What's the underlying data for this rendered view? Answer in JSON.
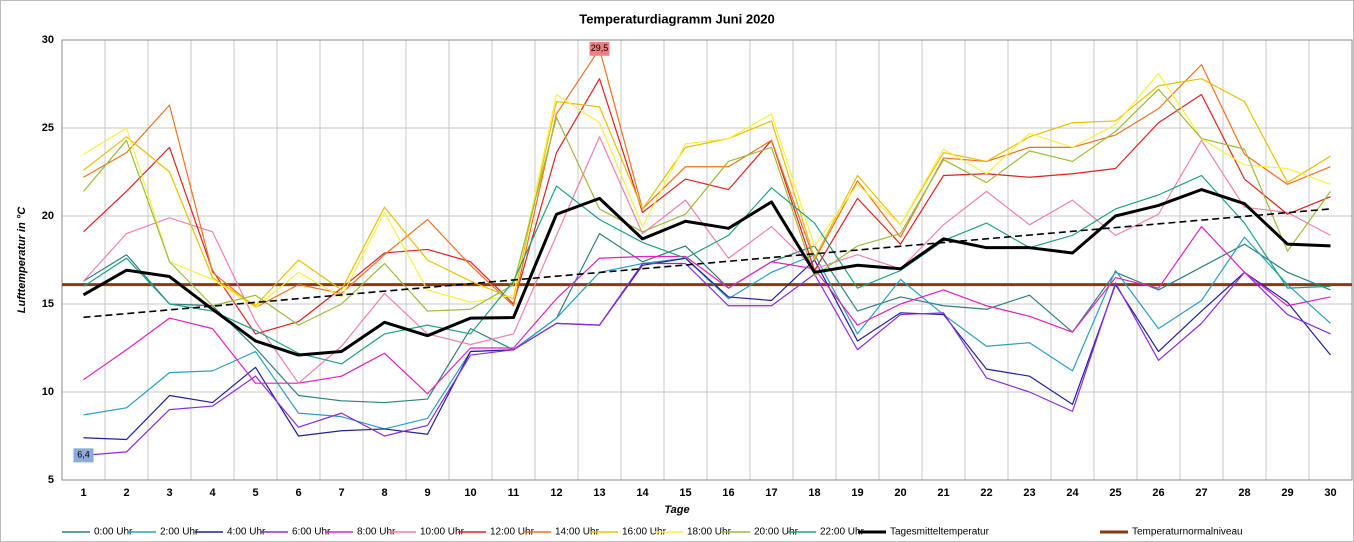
{
  "chart_data": {
    "type": "line",
    "title": "Temperaturdiagramm Juni 2020",
    "xlabel": "Tage",
    "ylabel": "Lufttemperatur in °C",
    "categories": [
      "1",
      "2",
      "3",
      "4",
      "5",
      "6",
      "7",
      "8",
      "9",
      "10",
      "11",
      "12",
      "13",
      "14",
      "15",
      "16",
      "17",
      "18",
      "19",
      "20",
      "21",
      "22",
      "23",
      "24",
      "25",
      "26",
      "27",
      "28",
      "29",
      "30"
    ],
    "ylim": [
      5,
      30
    ],
    "yticks": [
      5,
      10,
      15,
      20,
      25,
      30
    ],
    "grid": true,
    "series": [
      {
        "name": "0:00 Uhr",
        "color": "#2e7f7f",
        "values": [
          16.3,
          17.8,
          15,
          14.9,
          12.5,
          9.8,
          9.5,
          9.4,
          9.6,
          13.6,
          12.4,
          14.2,
          19,
          17.4,
          18.3,
          15.9,
          17.4,
          18.3,
          14.6,
          15.4,
          14.9,
          14.7,
          15.5,
          13.4,
          16.8,
          15.8,
          17.1,
          18.4,
          16.8,
          15.8
        ]
      },
      {
        "name": "2:00 Uhr",
        "color": "#2a9fc0",
        "values": [
          8.7,
          9.1,
          11.1,
          11.2,
          12.3,
          8.8,
          8.6,
          7.9,
          8.5,
          12.3,
          12.4,
          14.2,
          16.8,
          17.3,
          17.6,
          15.3,
          16.8,
          17.8,
          13.3,
          16.4,
          14.4,
          12.6,
          12.8,
          11.2,
          16.9,
          13.6,
          15.2,
          18.8,
          16.1,
          13.9
        ]
      },
      {
        "name": "4:00 Uhr",
        "color": "#1f1f9a",
        "values": [
          7.4,
          7.3,
          9.8,
          9.4,
          11.4,
          7.5,
          7.8,
          7.9,
          7.6,
          12.3,
          12.4,
          13.9,
          13.8,
          17.2,
          17.6,
          15.4,
          15.2,
          17.5,
          12.9,
          14.5,
          14.4,
          11.3,
          10.9,
          9.3,
          16.1,
          12.3,
          14.6,
          16.8,
          15.1,
          12.1
        ]
      },
      {
        "name": "6:00 Uhr",
        "color": "#8a2be2",
        "values": [
          6.4,
          6.6,
          9,
          9.2,
          10.9,
          8,
          8.8,
          7.5,
          8.1,
          12.1,
          12.4,
          13.9,
          13.8,
          17.3,
          17.3,
          14.9,
          14.9,
          16.7,
          12.4,
          14.4,
          14.5,
          10.8,
          10,
          8.9,
          16.2,
          11.8,
          13.9,
          16.8,
          14.4,
          13.3
        ]
      },
      {
        "name": "8:00 Uhr",
        "color": "#e020c0",
        "values": [
          10.7,
          12.4,
          14.2,
          13.6,
          10.5,
          10.5,
          10.9,
          12.2,
          9.9,
          12.5,
          12.5,
          15.3,
          17.6,
          17.7,
          17.7,
          15.9,
          17.4,
          17,
          13.8,
          15,
          15.8,
          14.9,
          14.3,
          13.4,
          16.5,
          15.9,
          19.4,
          16.8,
          14.9,
          15.4
        ]
      },
      {
        "name": "10:00 Uhr",
        "color": "#f080b0",
        "values": [
          16.3,
          19,
          19.9,
          19.1,
          14,
          10.5,
          12.6,
          15.6,
          13.3,
          12.7,
          13.3,
          18.9,
          24.5,
          19,
          20.9,
          17.6,
          19.4,
          17,
          17.8,
          17,
          19.5,
          21.4,
          19.5,
          20.9,
          18.9,
          20.1,
          24.3,
          20.5,
          20.2,
          18.9
        ]
      },
      {
        "name": "12:00 Uhr",
        "color": "#e02020",
        "values": [
          19.1,
          21.4,
          23.9,
          16.9,
          13.3,
          14,
          15.9,
          17.9,
          18.1,
          17.4,
          15,
          23.6,
          27.8,
          20.2,
          22.1,
          21.5,
          24.3,
          16.9,
          21,
          18.4,
          22.3,
          22.4,
          22.2,
          22.4,
          22.7,
          25.3,
          26.9,
          22.1,
          20.1,
          21.1
        ]
      },
      {
        "name": "14:00 Uhr",
        "color": "#f07020",
        "values": [
          22.2,
          23.6,
          26.3,
          16.8,
          14.8,
          16.1,
          15.6,
          17.8,
          19.8,
          17.2,
          14.9,
          25.8,
          29.5,
          20.4,
          22.8,
          22.8,
          24.3,
          17.5,
          22,
          18.8,
          23.3,
          23.1,
          23.9,
          23.9,
          24.6,
          26.1,
          28.6,
          23.5,
          21.8,
          22.8
        ]
      },
      {
        "name": "16:00 Uhr",
        "color": "#e8c000",
        "values": [
          22.6,
          24.5,
          22.5,
          16.5,
          14.9,
          17.5,
          15.8,
          20.5,
          17.5,
          16.3,
          15.3,
          26.5,
          26.2,
          20.4,
          23.9,
          24.4,
          25.4,
          17.6,
          22.3,
          19.5,
          23.6,
          23.1,
          24.5,
          25.3,
          25.4,
          27.4,
          27.8,
          26.5,
          21.9,
          23.4
        ]
      },
      {
        "name": "18:00 Uhr",
        "color": "#f8f040",
        "values": [
          23.5,
          25,
          17.4,
          16.4,
          14.8,
          16.8,
          15.4,
          20.2,
          15.8,
          15.1,
          15.5,
          26.9,
          25.3,
          19.4,
          24.1,
          24.4,
          25.8,
          18.3,
          21.8,
          19.5,
          23.8,
          22.4,
          24.7,
          23.9,
          25.2,
          28.1,
          24.4,
          22.9,
          22.7,
          21.8
        ]
      },
      {
        "name": "20:00 Uhr",
        "color": "#9bbb3b",
        "values": [
          21.4,
          24.3,
          17.4,
          14.9,
          15.5,
          13.8,
          15,
          17.3,
          14.6,
          14.7,
          16.1,
          25.6,
          20.4,
          19.1,
          20.1,
          23.1,
          23.9,
          16.6,
          18.3,
          19,
          23.2,
          21.9,
          23.7,
          23.1,
          24.8,
          27.2,
          24.4,
          23.8,
          18,
          21.4
        ]
      },
      {
        "name": "22:00 Uhr",
        "color": "#20a080",
        "values": [
          16,
          17.6,
          15,
          14.6,
          13.5,
          12.2,
          11.6,
          13.3,
          13.8,
          13.3,
          16.3,
          21.7,
          19.8,
          18.5,
          17.6,
          18.9,
          21.6,
          19.6,
          15.9,
          16.9,
          18.6,
          19.6,
          18.2,
          18.9,
          20.4,
          21.2,
          22.3,
          19.6,
          15.9,
          16
        ]
      },
      {
        "name": "Tagesmitteltemperatur",
        "color": "#000000",
        "bold": true,
        "values": [
          15.52,
          16.92,
          16.56,
          14.7,
          12.9,
          12.1,
          12.3,
          13.96,
          13.2,
          14.2,
          14.23,
          20.1,
          21,
          18.7,
          19.7,
          19.3,
          20.8,
          16.8,
          17.2,
          17,
          18.7,
          18.2,
          18.2,
          17.9,
          20,
          20.6,
          21.5,
          20.7,
          18.4,
          18.3
        ]
      }
    ],
    "normal": {
      "name": "Temperaturnormalniveau",
      "color": "#8b3a0f",
      "value": 16.1
    },
    "trendline": true,
    "highlights": [
      {
        "series": 7,
        "index": 12,
        "label": "29,5",
        "color": "#f08080"
      },
      {
        "series": 3,
        "index": 0,
        "label": "6,4",
        "color": "#8eaadb"
      }
    ]
  }
}
